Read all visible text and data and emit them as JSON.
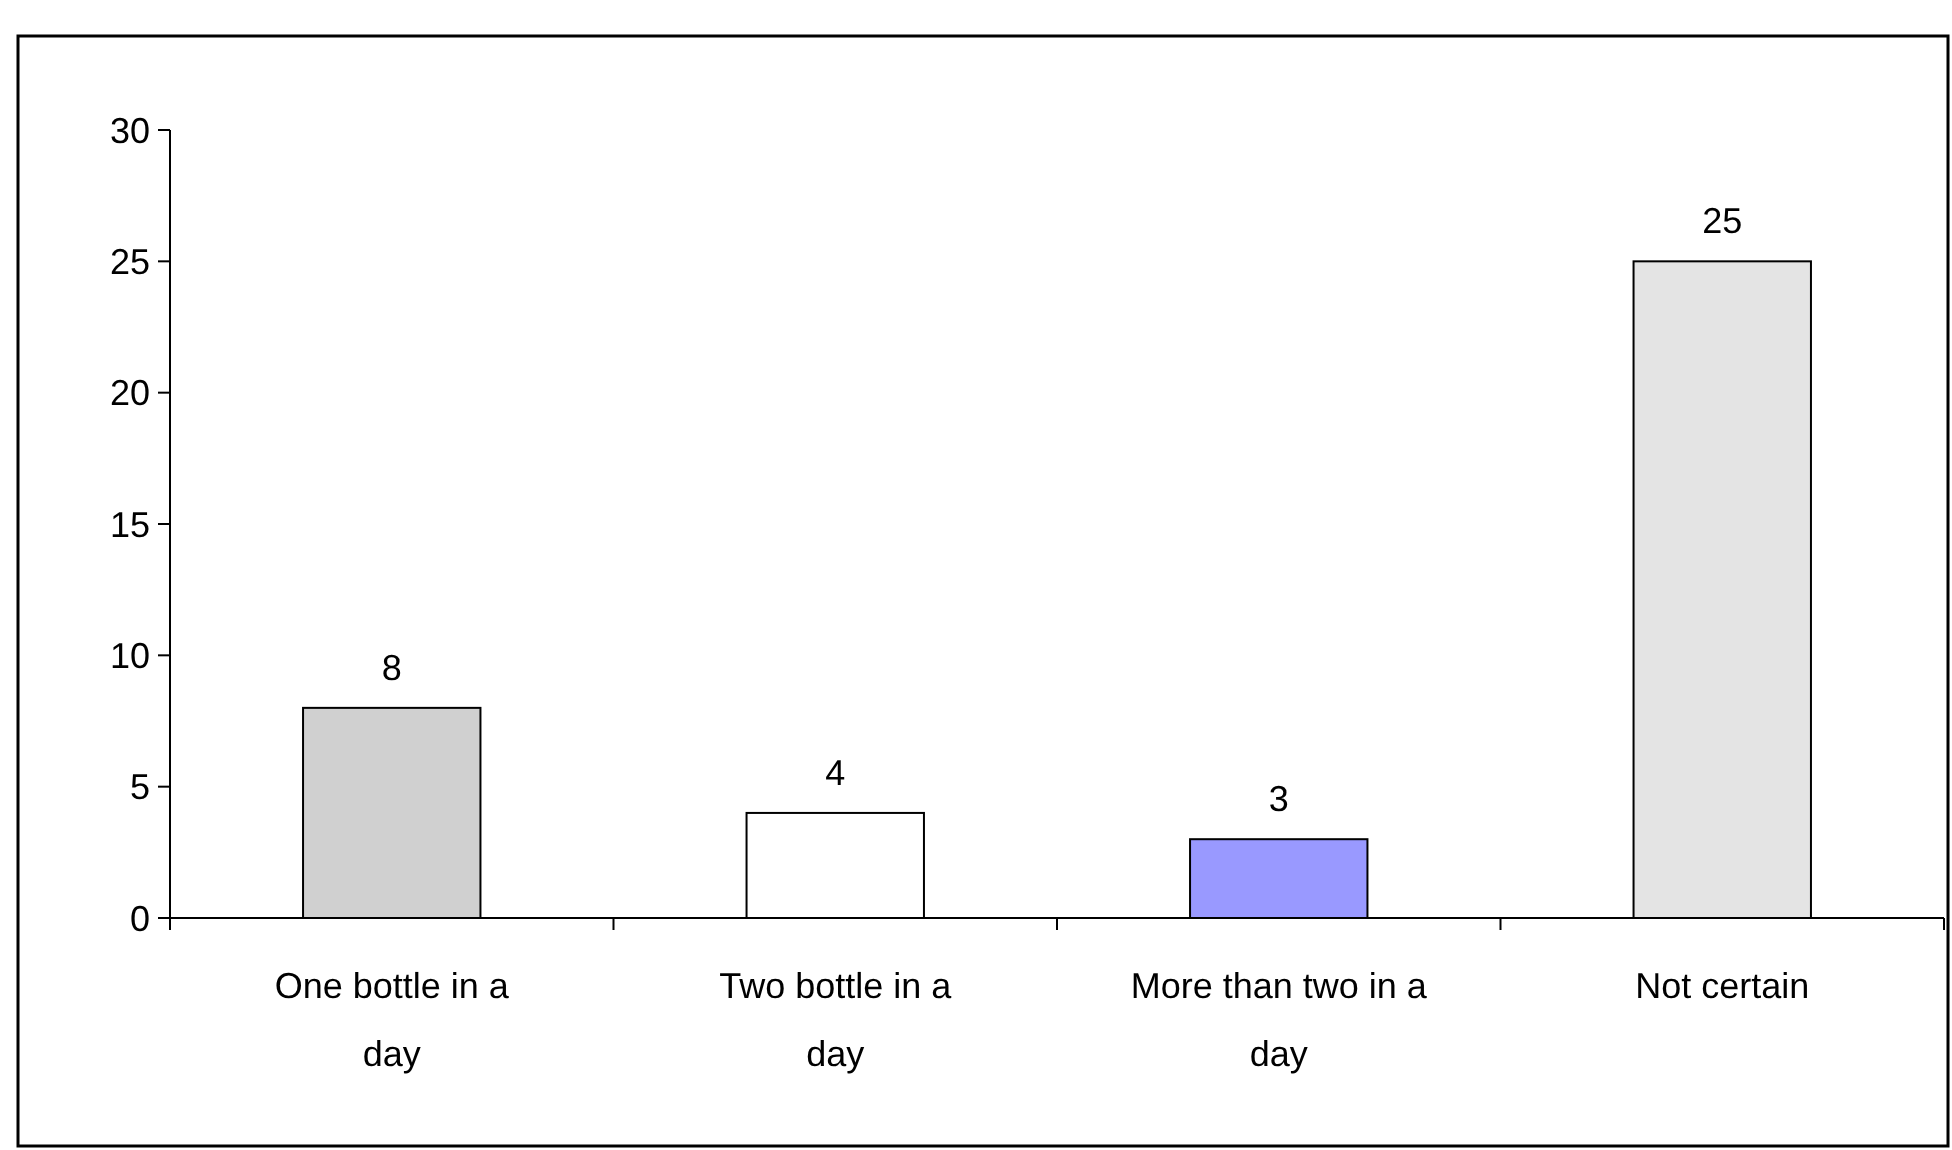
{
  "chart_data": {
    "type": "bar",
    "categories": [
      "One bottle in a day",
      "Two bottle in a day",
      "More than two in a day",
      "Not certain"
    ],
    "values": [
      8,
      4,
      3,
      25
    ],
    "colors": [
      "#d0d0d0",
      "#ffffff",
      "#9999ff",
      "#e4e4e4"
    ],
    "ylim": [
      0,
      30
    ],
    "yticks": [
      0,
      5,
      10,
      15,
      20,
      25,
      30
    ],
    "grid": false,
    "data_labels": true
  }
}
